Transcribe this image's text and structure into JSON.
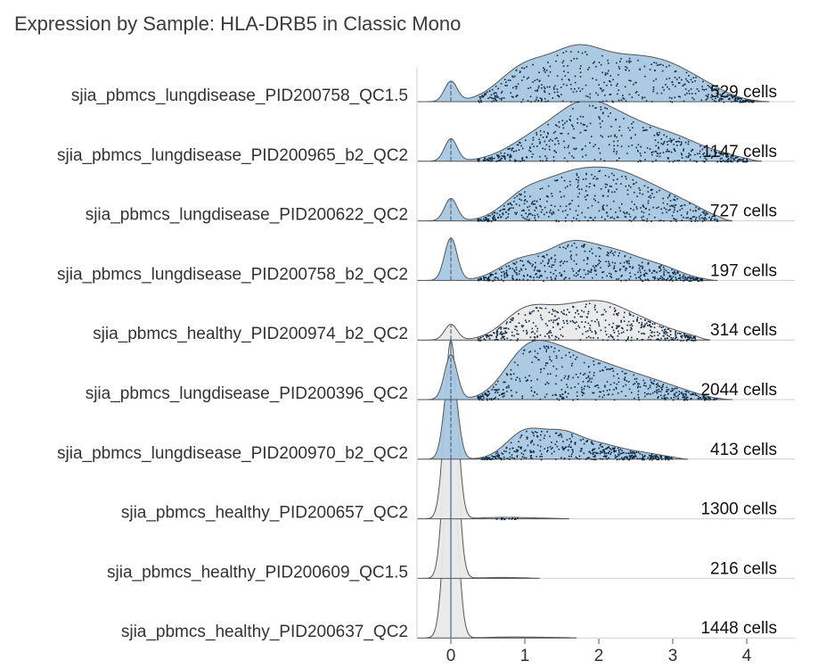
{
  "chart_data": {
    "type": "ridgeline",
    "title": "Expression by Sample: HLA-DRB5 in Classic Mono",
    "xlabel": "",
    "ylabel": "",
    "xlim": [
      -0.5,
      4.5
    ],
    "x_ticks": [
      0,
      1,
      2,
      3,
      4
    ],
    "colors": {
      "lungdisease": "#a8c8e1",
      "healthy": "#e9e9e9",
      "outline": "#555555",
      "points": "#102a44"
    },
    "series": [
      {
        "name": "sjia_pbmcs_lungdisease_PID200758_QC1.5",
        "count_label": "529 cells",
        "group": "lungdisease",
        "zero_peak": 0.45,
        "components": [
          [
            1.0,
            0.35,
            0.75
          ],
          [
            1.7,
            0.35,
            1.0
          ],
          [
            2.4,
            0.4,
            0.8
          ],
          [
            3.0,
            0.35,
            0.55
          ],
          [
            3.5,
            0.3,
            0.2
          ]
        ],
        "max_x": 4.1
      },
      {
        "name": "sjia_pbmcs_lungdisease_PID200965_b2_QC2",
        "count_label": "1147 cells",
        "group": "lungdisease",
        "zero_peak": 0.5,
        "components": [
          [
            1.2,
            0.4,
            0.55
          ],
          [
            1.8,
            0.35,
            0.95
          ],
          [
            2.4,
            0.4,
            0.75
          ],
          [
            3.1,
            0.35,
            0.4
          ],
          [
            3.7,
            0.25,
            0.1
          ]
        ],
        "max_x": 4.0
      },
      {
        "name": "sjia_pbmcs_lungdisease_PID200622_QC2",
        "count_label": "727 cells",
        "group": "lungdisease",
        "zero_peak": 0.5,
        "components": [
          [
            1.0,
            0.3,
            0.55
          ],
          [
            1.6,
            0.35,
            0.85
          ],
          [
            2.2,
            0.35,
            0.85
          ],
          [
            2.8,
            0.35,
            0.55
          ],
          [
            3.3,
            0.25,
            0.15
          ]
        ],
        "max_x": 3.6
      },
      {
        "name": "sjia_pbmcs_lungdisease_PID200758_b2_QC2",
        "count_label": "197 cells",
        "group": "lungdisease",
        "zero_peak": 0.95,
        "components": [
          [
            0.95,
            0.3,
            0.45
          ],
          [
            1.6,
            0.3,
            0.7
          ],
          [
            2.2,
            0.35,
            0.6
          ],
          [
            2.85,
            0.3,
            0.25
          ]
        ],
        "max_x": 3.4
      },
      {
        "name": "sjia_pbmcs_healthy_PID200974_b2_QC2",
        "count_label": "314 cells",
        "group": "healthy",
        "zero_peak": 0.35,
        "components": [
          [
            1.0,
            0.3,
            0.6
          ],
          [
            1.6,
            0.35,
            0.6
          ],
          [
            2.1,
            0.3,
            0.55
          ],
          [
            2.6,
            0.3,
            0.35
          ],
          [
            3.1,
            0.25,
            0.1
          ]
        ],
        "max_x": 3.3
      },
      {
        "name": "sjia_pbmcs_lungdisease_PID200396_QC2",
        "count_label": "2044 cells",
        "group": "lungdisease",
        "zero_peak": 1.0,
        "components": [
          [
            1.0,
            0.3,
            0.9
          ],
          [
            1.5,
            0.35,
            0.85
          ],
          [
            2.1,
            0.35,
            0.55
          ],
          [
            2.7,
            0.35,
            0.35
          ],
          [
            3.2,
            0.25,
            0.08
          ]
        ],
        "max_x": 3.6
      },
      {
        "name": "sjia_pbmcs_lungdisease_PID200970_b2_QC2",
        "count_label": "413 cells",
        "group": "lungdisease",
        "zero_peak": 2.1,
        "components": [
          [
            1.0,
            0.25,
            0.6
          ],
          [
            1.5,
            0.25,
            0.5
          ],
          [
            2.0,
            0.3,
            0.3
          ],
          [
            2.6,
            0.3,
            0.12
          ]
        ],
        "max_x": 3.0
      },
      {
        "name": "sjia_pbmcs_healthy_PID200657_QC2",
        "count_label": "1300 cells",
        "group": "healthy",
        "zero_peak": 4.0,
        "components": [
          [
            0.7,
            0.3,
            0.03
          ],
          [
            1.2,
            0.3,
            0.01
          ]
        ],
        "max_x": 1.4
      },
      {
        "name": "sjia_pbmcs_healthy_PID200609_QC1.5",
        "count_label": "216 cells",
        "group": "healthy",
        "zero_peak": 5.0,
        "components": [
          [
            0.7,
            0.3,
            0.02
          ]
        ],
        "max_x": 1.0
      },
      {
        "name": "sjia_pbmcs_healthy_PID200637_QC2",
        "count_label": "1448 cells",
        "group": "healthy",
        "zero_peak": 4.5,
        "components": [
          [
            0.8,
            0.3,
            0.02
          ],
          [
            1.4,
            0.3,
            0.01
          ]
        ],
        "max_x": 1.5
      }
    ]
  }
}
